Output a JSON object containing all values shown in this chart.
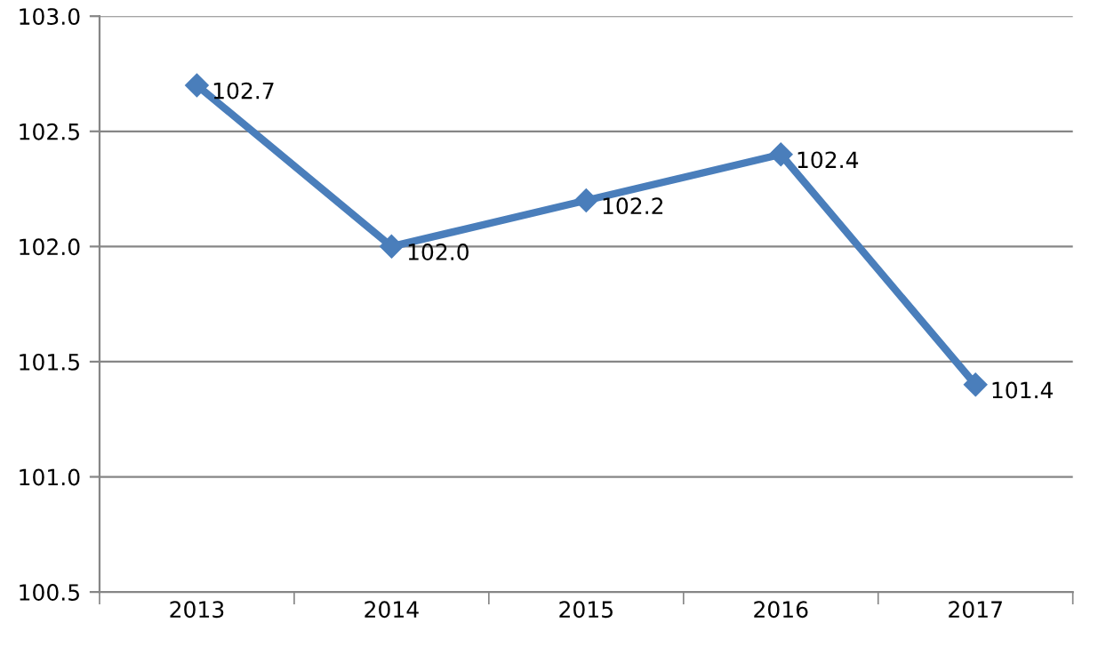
{
  "chart_data": {
    "type": "line",
    "categories": [
      "2013",
      "2014",
      "2015",
      "2016",
      "2017"
    ],
    "series": [
      {
        "color": "#4a7ebb",
        "values": [
          102.7,
          102.0,
          102.2,
          102.4,
          101.4
        ],
        "value_labels": [
          "102.7",
          "102.0",
          "102.2",
          "102.4",
          "101.4"
        ]
      }
    ],
    "ylim": [
      100.5,
      103.0
    ],
    "yticks": [
      {
        "value": 100.5,
        "label": "100.5"
      },
      {
        "value": 101.0,
        "label": "101.0"
      },
      {
        "value": 101.5,
        "label": "101.5"
      },
      {
        "value": 102.0,
        "label": "102.0"
      },
      {
        "value": 102.5,
        "label": "102.5"
      },
      {
        "value": 103.0,
        "label": "103.0"
      }
    ],
    "grid": "y",
    "marker": "diamond",
    "line_style": "solid"
  }
}
